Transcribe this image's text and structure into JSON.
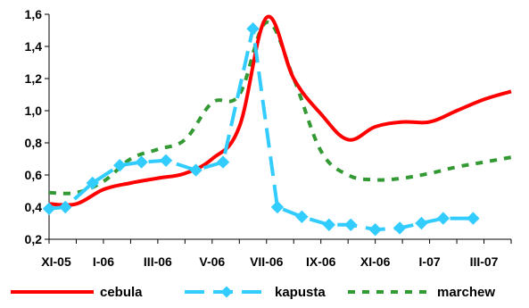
{
  "chart_data": {
    "type": "line",
    "title": "",
    "xlabel": "",
    "ylabel": "",
    "ylim": [
      0.2,
      1.6
    ],
    "ytick_step": 0.2,
    "ytick_labels": [
      "0,2",
      "0,4",
      "0,6",
      "0,8",
      "1,0",
      "1,2",
      "1,4",
      "1,6"
    ],
    "x_tick_labels": [
      "XI-05",
      "I-06",
      "III-06",
      "V-06",
      "VII-06",
      "IX-06",
      "XI-06",
      "I-07",
      "III-07"
    ],
    "grid": false,
    "legend_position": "bottom",
    "series": [
      {
        "name": "cebula",
        "color": "#ff0000",
        "line_style": "solid",
        "marker": "none",
        "x": [
          0,
          1,
          2,
          3,
          4,
          5,
          6,
          7,
          8,
          9,
          10,
          11,
          12,
          13,
          14,
          15,
          16,
          17
        ],
        "values": [
          0.42,
          0.42,
          0.51,
          0.55,
          0.58,
          0.61,
          0.7,
          0.9,
          1.58,
          1.2,
          0.98,
          0.82,
          0.9,
          0.93,
          0.93,
          1.0,
          1.07,
          1.12
        ]
      },
      {
        "name": "kapusta",
        "color": "#33ccff",
        "line_style": "dashed",
        "marker": "diamond",
        "x": [
          0,
          0.6,
          1.6,
          2.6,
          3.4,
          4.3,
          5.4,
          6.4,
          7.5,
          8.4,
          9.3,
          10.3,
          11.1,
          12.0,
          12.9,
          13.7,
          14.5,
          15.6
        ],
        "values": [
          0.39,
          0.4,
          0.55,
          0.66,
          0.68,
          0.69,
          0.63,
          0.68,
          1.51,
          0.4,
          0.34,
          0.29,
          0.29,
          0.26,
          0.27,
          0.3,
          0.33,
          0.33
        ]
      },
      {
        "name": "marchew",
        "color": "#339933",
        "line_style": "dotted",
        "marker": "none",
        "x": [
          0,
          1,
          2,
          3,
          4,
          5,
          6,
          7,
          8,
          9,
          10,
          11,
          12,
          13,
          14,
          15,
          16,
          17
        ],
        "values": [
          0.49,
          0.49,
          0.56,
          0.7,
          0.76,
          0.82,
          1.05,
          1.1,
          1.55,
          1.2,
          0.75,
          0.6,
          0.57,
          0.58,
          0.61,
          0.65,
          0.68,
          0.71
        ]
      }
    ]
  }
}
